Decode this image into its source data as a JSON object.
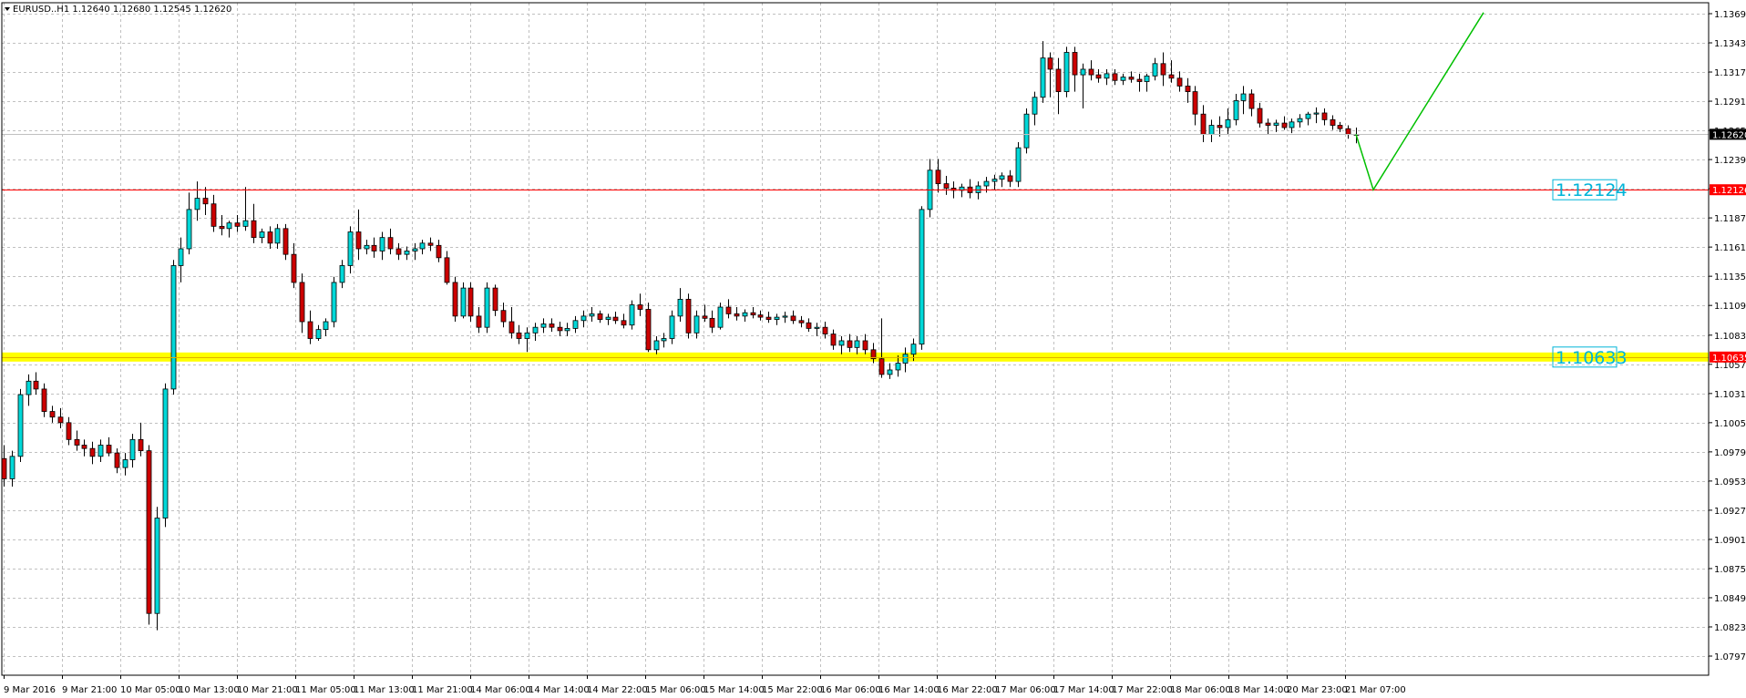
{
  "header": {
    "symbol_line": "EURUSD..H1  1.12640 1.12680 1.12545 1.12620"
  },
  "colors": {
    "bull_body": "#00d8d8",
    "bear_body": "#cc0000",
    "grid": "#c0c0c0",
    "support_band": "#ffff00",
    "resistance_line": "#ff0000",
    "projection": "#00c000",
    "label_text": "#00b4d8",
    "bid_line": "#c0c0c0"
  },
  "chart_data": {
    "type": "candlestick",
    "symbol": "EURUSD..",
    "timeframe": "H1",
    "ylim": [
      1.0795,
      1.1379
    ],
    "y_ticks": [
      "1.13695",
      "1.13435",
      "1.13175",
      "1.12915",
      "1.12655",
      "1.12395",
      "1.12135",
      "1.11875",
      "1.11615",
      "1.11355",
      "1.11095",
      "1.10830",
      "1.10570",
      "1.10310",
      "1.10050",
      "1.09790",
      "1.09530",
      "1.09270",
      "1.09010",
      "1.08750",
      "1.08490",
      "1.08230",
      "1.07970"
    ],
    "x_ticks": [
      "9 Mar 2016",
      "9 Mar 21:00",
      "10 Mar 05:00",
      "10 Mar 13:00",
      "10 Mar 21:00",
      "11 Mar 05:00",
      "11 Mar 13:00",
      "11 Mar 21:00",
      "14 Mar 06:00",
      "14 Mar 14:00",
      "14 Mar 22:00",
      "15 Mar 06:00",
      "15 Mar 14:00",
      "15 Mar 22:00",
      "16 Mar 06:00",
      "16 Mar 14:00",
      "16 Mar 22:00",
      "17 Mar 06:00",
      "17 Mar 14:00",
      "17 Mar 22:00",
      "18 Mar 06:00",
      "18 Mar 14:00",
      "20 Mar 23:00",
      "21 Mar 07:00"
    ],
    "ohlc": [
      [
        1.0973,
        1.0985,
        1.0948,
        1.0955
      ],
      [
        1.0955,
        1.098,
        1.0948,
        1.0975
      ],
      [
        1.0975,
        1.1035,
        1.097,
        1.103
      ],
      [
        1.103,
        1.1048,
        1.102,
        1.1042
      ],
      [
        1.1042,
        1.105,
        1.103,
        1.1035
      ],
      [
        1.1035,
        1.104,
        1.101,
        1.1015
      ],
      [
        1.1015,
        1.102,
        1.1005,
        1.101
      ],
      [
        1.101,
        1.1018,
        1.1,
        1.1005
      ],
      [
        1.1005,
        1.101,
        1.0985,
        1.099
      ],
      [
        1.099,
        1.0998,
        1.098,
        1.0985
      ],
      [
        1.0985,
        1.099,
        1.0975,
        1.0982
      ],
      [
        1.0982,
        1.0988,
        1.0968,
        1.0975
      ],
      [
        1.0975,
        1.099,
        1.097,
        1.0985
      ],
      [
        1.0985,
        1.0992,
        1.0975,
        1.0978
      ],
      [
        1.0978,
        1.0982,
        1.096,
        1.0965
      ],
      [
        1.0965,
        1.0978,
        1.0958,
        1.0972
      ],
      [
        1.0972,
        1.0995,
        1.0965,
        1.099
      ],
      [
        1.099,
        1.1005,
        1.0975,
        1.098
      ],
      [
        1.098,
        1.0985,
        1.0825,
        1.0835
      ],
      [
        1.0835,
        1.093,
        1.082,
        1.092
      ],
      [
        1.092,
        1.104,
        1.0912,
        1.1035
      ],
      [
        1.1035,
        1.115,
        1.103,
        1.1145
      ],
      [
        1.1145,
        1.117,
        1.113,
        1.116
      ],
      [
        1.116,
        1.121,
        1.1155,
        1.1195
      ],
      [
        1.1195,
        1.122,
        1.1185,
        1.1205
      ],
      [
        1.1205,
        1.1215,
        1.119,
        1.12
      ],
      [
        1.12,
        1.1208,
        1.1175,
        1.118
      ],
      [
        1.118,
        1.119,
        1.1172,
        1.1178
      ],
      [
        1.1178,
        1.1185,
        1.117,
        1.1183
      ],
      [
        1.1183,
        1.119,
        1.1175,
        1.118
      ],
      [
        1.118,
        1.1215,
        1.1176,
        1.1185
      ],
      [
        1.1185,
        1.12,
        1.1165,
        1.117
      ],
      [
        1.117,
        1.1178,
        1.1165,
        1.1175
      ],
      [
        1.1175,
        1.118,
        1.116,
        1.1165
      ],
      [
        1.1165,
        1.1182,
        1.116,
        1.1178
      ],
      [
        1.1178,
        1.1182,
        1.115,
        1.1155
      ],
      [
        1.1155,
        1.1165,
        1.1125,
        1.113
      ],
      [
        1.113,
        1.1138,
        1.1085,
        1.1095
      ],
      [
        1.1095,
        1.1105,
        1.1075,
        1.108
      ],
      [
        1.108,
        1.1092,
        1.1078,
        1.1088
      ],
      [
        1.1088,
        1.1098,
        1.1082,
        1.1095
      ],
      [
        1.1095,
        1.1135,
        1.109,
        1.113
      ],
      [
        1.113,
        1.115,
        1.1125,
        1.1145
      ],
      [
        1.1145,
        1.118,
        1.1138,
        1.1175
      ],
      [
        1.1175,
        1.1195,
        1.115,
        1.116
      ],
      [
        1.116,
        1.1168,
        1.1155,
        1.1163
      ],
      [
        1.1163,
        1.117,
        1.1152,
        1.1158
      ],
      [
        1.1158,
        1.1175,
        1.115,
        1.117
      ],
      [
        1.117,
        1.1178,
        1.1155,
        1.116
      ],
      [
        1.116,
        1.1165,
        1.115,
        1.1155
      ],
      [
        1.1155,
        1.1162,
        1.115,
        1.1158
      ],
      [
        1.1158,
        1.1165,
        1.115,
        1.116
      ],
      [
        1.116,
        1.1168,
        1.1155,
        1.1165
      ],
      [
        1.1165,
        1.117,
        1.1158,
        1.1163
      ],
      [
        1.1163,
        1.1168,
        1.1148,
        1.1152
      ],
      [
        1.1152,
        1.1158,
        1.1128,
        1.113
      ],
      [
        1.113,
        1.1135,
        1.1095,
        1.11
      ],
      [
        1.11,
        1.113,
        1.1098,
        1.1125
      ],
      [
        1.1125,
        1.113,
        1.1095,
        1.11
      ],
      [
        1.11,
        1.1108,
        1.1085,
        1.109
      ],
      [
        1.109,
        1.113,
        1.1085,
        1.1125
      ],
      [
        1.1125,
        1.1128,
        1.11,
        1.1105
      ],
      [
        1.1105,
        1.1112,
        1.109,
        1.1095
      ],
      [
        1.1095,
        1.1108,
        1.108,
        1.1085
      ],
      [
        1.1085,
        1.1092,
        1.1075,
        1.108
      ],
      [
        1.108,
        1.109,
        1.1068,
        1.1085
      ],
      [
        1.1085,
        1.1094,
        1.1078,
        1.109
      ],
      [
        1.109,
        1.1098,
        1.1085,
        1.1093
      ],
      [
        1.1093,
        1.1098,
        1.1086,
        1.109
      ],
      [
        1.109,
        1.1095,
        1.1082,
        1.1087
      ],
      [
        1.1087,
        1.1094,
        1.1082,
        1.1089
      ],
      [
        1.1089,
        1.11,
        1.1085,
        1.1096
      ],
      [
        1.1096,
        1.1105,
        1.109,
        1.11
      ],
      [
        1.11,
        1.1108,
        1.1095,
        1.1102
      ],
      [
        1.1102,
        1.1105,
        1.1094,
        1.1097
      ],
      [
        1.1097,
        1.1102,
        1.1092,
        1.1099
      ],
      [
        1.1099,
        1.1104,
        1.1093,
        1.1096
      ],
      [
        1.1096,
        1.1102,
        1.1089,
        1.1092
      ],
      [
        1.1092,
        1.1114,
        1.1088,
        1.111
      ],
      [
        1.111,
        1.112,
        1.11,
        1.1106
      ],
      [
        1.1106,
        1.1112,
        1.1068,
        1.107
      ],
      [
        1.107,
        1.1082,
        1.1066,
        1.1078
      ],
      [
        1.1078,
        1.1085,
        1.1072,
        1.108
      ],
      [
        1.108,
        1.1105,
        1.1075,
        1.11
      ],
      [
        1.11,
        1.1125,
        1.1095,
        1.1115
      ],
      [
        1.1115,
        1.112,
        1.108,
        1.1085
      ],
      [
        1.1085,
        1.1105,
        1.108,
        1.11
      ],
      [
        1.11,
        1.111,
        1.1095,
        1.1098
      ],
      [
        1.1098,
        1.1105,
        1.1085,
        1.109
      ],
      [
        1.109,
        1.1112,
        1.1088,
        1.1108
      ],
      [
        1.1108,
        1.1115,
        1.1098,
        1.1102
      ],
      [
        1.1102,
        1.1108,
        1.1096,
        1.11
      ],
      [
        1.11,
        1.1106,
        1.1095,
        1.1103
      ],
      [
        1.1103,
        1.1108,
        1.1098,
        1.1101
      ],
      [
        1.1101,
        1.1105,
        1.1096,
        1.1099
      ],
      [
        1.1099,
        1.1104,
        1.1094,
        1.1097
      ],
      [
        1.1097,
        1.1102,
        1.1092,
        1.1099
      ],
      [
        1.1099,
        1.1104,
        1.1094,
        1.11
      ],
      [
        1.11,
        1.1105,
        1.1093,
        1.1096
      ],
      [
        1.1096,
        1.11,
        1.109,
        1.1094
      ],
      [
        1.1094,
        1.1098,
        1.1086,
        1.1089
      ],
      [
        1.1089,
        1.1094,
        1.1082,
        1.109
      ],
      [
        1.109,
        1.1095,
        1.108,
        1.1084
      ],
      [
        1.1084,
        1.1088,
        1.107,
        1.1074
      ],
      [
        1.1074,
        1.1082,
        1.1066,
        1.1078
      ],
      [
        1.1078,
        1.1084,
        1.1068,
        1.1072
      ],
      [
        1.1072,
        1.1082,
        1.1066,
        1.1078
      ],
      [
        1.1078,
        1.1084,
        1.1066,
        1.107
      ],
      [
        1.107,
        1.1076,
        1.1058,
        1.1062
      ],
      [
        1.1062,
        1.1098,
        1.1045,
        1.1048
      ],
      [
        1.1048,
        1.1058,
        1.1044,
        1.1052
      ],
      [
        1.1052,
        1.1065,
        1.1046,
        1.1058
      ],
      [
        1.1058,
        1.1072,
        1.105,
        1.1066
      ],
      [
        1.1066,
        1.108,
        1.106,
        1.1075
      ],
      [
        1.1075,
        1.1198,
        1.107,
        1.1195
      ],
      [
        1.1195,
        1.124,
        1.1188,
        1.123
      ],
      [
        1.123,
        1.124,
        1.121,
        1.1218
      ],
      [
        1.1218,
        1.1225,
        1.1208,
        1.1214
      ],
      [
        1.1214,
        1.122,
        1.1205,
        1.1212
      ],
      [
        1.1212,
        1.1218,
        1.1206,
        1.1215
      ],
      [
        1.1215,
        1.1222,
        1.1205,
        1.121
      ],
      [
        1.121,
        1.122,
        1.1204,
        1.1216
      ],
      [
        1.1216,
        1.1224,
        1.121,
        1.122
      ],
      [
        1.122,
        1.1226,
        1.1212,
        1.1222
      ],
      [
        1.1222,
        1.1228,
        1.1215,
        1.1225
      ],
      [
        1.1225,
        1.123,
        1.1215,
        1.122
      ],
      [
        1.122,
        1.1255,
        1.1215,
        1.125
      ],
      [
        1.125,
        1.1285,
        1.1245,
        1.128
      ],
      [
        1.128,
        1.13,
        1.127,
        1.1295
      ],
      [
        1.1295,
        1.1345,
        1.129,
        1.133
      ],
      [
        1.133,
        1.1335,
        1.1295,
        1.132
      ],
      [
        1.132,
        1.133,
        1.128,
        1.13
      ],
      [
        1.13,
        1.134,
        1.1295,
        1.1335
      ],
      [
        1.1335,
        1.134,
        1.13,
        1.1315
      ],
      [
        1.1315,
        1.1325,
        1.1285,
        1.132
      ],
      [
        1.132,
        1.1328,
        1.131,
        1.1315
      ],
      [
        1.1315,
        1.132,
        1.1308,
        1.1312
      ],
      [
        1.1312,
        1.132,
        1.1306,
        1.1316
      ],
      [
        1.1316,
        1.132,
        1.1306,
        1.131
      ],
      [
        1.131,
        1.1316,
        1.1306,
        1.1313
      ],
      [
        1.1313,
        1.1318,
        1.1308,
        1.1311
      ],
      [
        1.1311,
        1.1316,
        1.13,
        1.1309
      ],
      [
        1.1309,
        1.1316,
        1.13,
        1.1314
      ],
      [
        1.1314,
        1.133,
        1.131,
        1.1325
      ],
      [
        1.1325,
        1.1335,
        1.1305,
        1.1315
      ],
      [
        1.1315,
        1.1328,
        1.1308,
        1.1312
      ],
      [
        1.1312,
        1.1318,
        1.13,
        1.1305
      ],
      [
        1.1305,
        1.1312,
        1.129,
        1.13
      ],
      [
        1.13,
        1.1305,
        1.127,
        1.128
      ],
      [
        1.128,
        1.1288,
        1.1255,
        1.1262
      ],
      [
        1.1262,
        1.1275,
        1.1255,
        1.127
      ],
      [
        1.127,
        1.1278,
        1.126,
        1.1268
      ],
      [
        1.1268,
        1.1285,
        1.1262,
        1.1275
      ],
      [
        1.1275,
        1.1298,
        1.127,
        1.1292
      ],
      [
        1.1292,
        1.1305,
        1.128,
        1.1298
      ],
      [
        1.1298,
        1.1302,
        1.1278,
        1.1285
      ],
      [
        1.1285,
        1.129,
        1.1268,
        1.1272
      ],
      [
        1.1272,
        1.1276,
        1.1262,
        1.127
      ],
      [
        1.127,
        1.1275,
        1.1264,
        1.1272
      ],
      [
        1.1272,
        1.1278,
        1.1266,
        1.1268
      ],
      [
        1.1268,
        1.1276,
        1.1263,
        1.1273
      ],
      [
        1.1273,
        1.128,
        1.1268,
        1.1276
      ],
      [
        1.1276,
        1.1282,
        1.127,
        1.128
      ],
      [
        1.128,
        1.1286,
        1.1272,
        1.1281
      ],
      [
        1.1281,
        1.1285,
        1.127,
        1.1275
      ],
      [
        1.1275,
        1.1279,
        1.1266,
        1.127
      ],
      [
        1.127,
        1.1273,
        1.1264,
        1.1267
      ],
      [
        1.1267,
        1.127,
        1.1258,
        1.1262
      ],
      [
        1.1262,
        1.1268,
        1.1254,
        1.1262
      ]
    ],
    "levels": [
      {
        "name": "resistance",
        "price": 1.12126,
        "tag": "1.12126",
        "label": "1.12124"
      },
      {
        "name": "support",
        "price": 1.10635,
        "tag": "1.10635",
        "label": "1.10633"
      }
    ],
    "bid": {
      "price": 1.1262,
      "tag": "1.12620"
    },
    "projection": [
      [
        1.1262,
        0
      ],
      [
        1.12126,
        0
      ],
      [
        1.13705,
        0
      ]
    ]
  }
}
